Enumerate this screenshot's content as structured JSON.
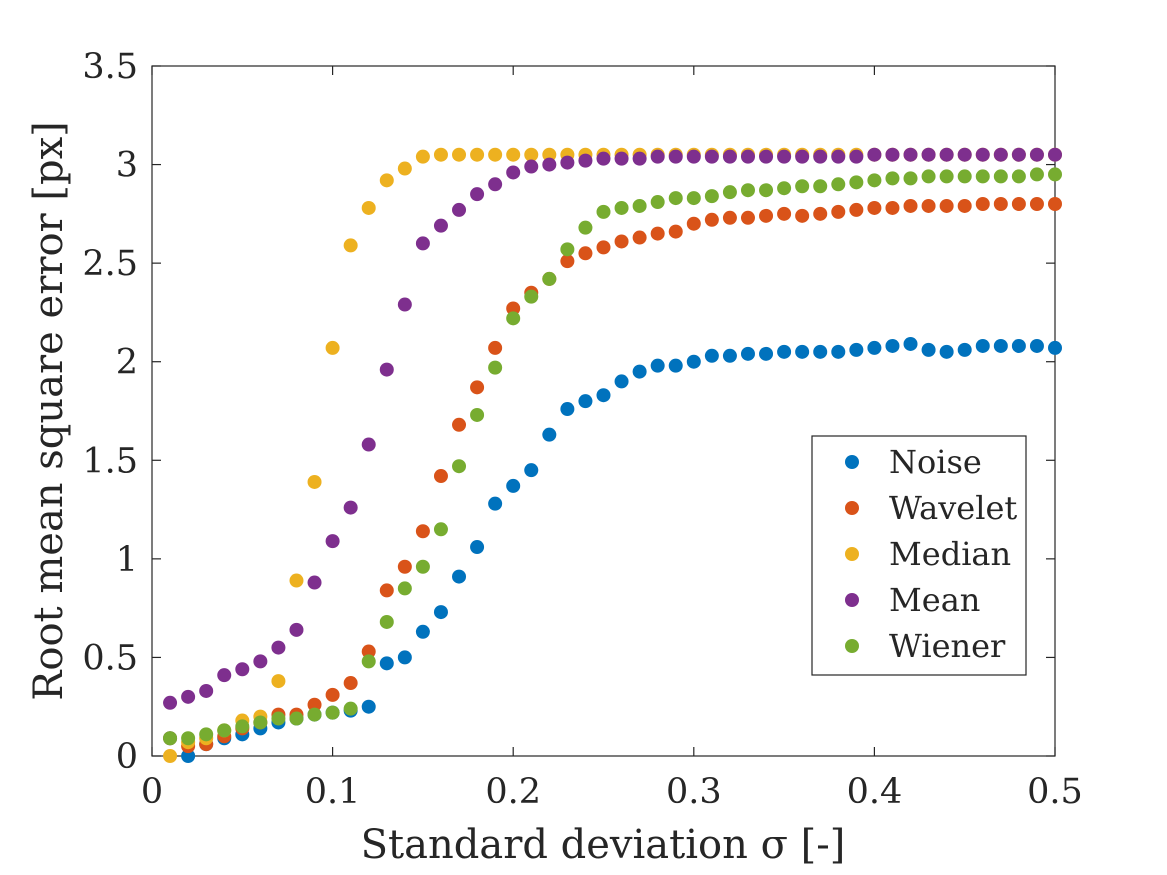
{
  "chart_data": {
    "type": "scatter",
    "title": "",
    "xlabel": "Standard deviation σ [-]",
    "ylabel": "Root mean square error [px]",
    "xlim": [
      0,
      0.5
    ],
    "ylim": [
      0,
      3.5
    ],
    "xticks": [
      "0",
      "0.1",
      "0.2",
      "0.3",
      "0.4",
      "0.5"
    ],
    "yticks": [
      "0",
      "0.5",
      "1",
      "1.5",
      "2",
      "2.5",
      "3",
      "3.5"
    ],
    "grid": false,
    "legend_position": "lower-right",
    "x": [
      0.01,
      0.02,
      0.03,
      0.04,
      0.05,
      0.06,
      0.07,
      0.08,
      0.09,
      0.1,
      0.11,
      0.12,
      0.13,
      0.14,
      0.15,
      0.16,
      0.17,
      0.18,
      0.19,
      0.2,
      0.21,
      0.22,
      0.23,
      0.24,
      0.25,
      0.26,
      0.27,
      0.28,
      0.29,
      0.3,
      0.31,
      0.32,
      0.33,
      0.34,
      0.35,
      0.36,
      0.37,
      0.38,
      0.39,
      0.4,
      0.41,
      0.42,
      0.43,
      0.44,
      0.45,
      0.46,
      0.47,
      0.48,
      0.49,
      0.5
    ],
    "series": [
      {
        "name": "Noise",
        "color": "#0072BD",
        "values": [
          0.09,
          0.0,
          0.06,
          0.09,
          0.11,
          0.14,
          0.17,
          0.19,
          0.21,
          0.22,
          0.23,
          0.25,
          0.47,
          0.5,
          0.63,
          0.73,
          0.91,
          1.06,
          1.28,
          1.37,
          1.45,
          1.63,
          1.76,
          1.8,
          1.83,
          1.9,
          1.95,
          1.98,
          1.98,
          2.0,
          2.03,
          2.03,
          2.04,
          2.04,
          2.05,
          2.05,
          2.05,
          2.05,
          2.06,
          2.07,
          2.08,
          2.09,
          2.06,
          2.05,
          2.06,
          2.08,
          2.08,
          2.08,
          2.08,
          2.07
        ]
      },
      {
        "name": "Wavelet",
        "color": "#D95319",
        "values": [
          0.09,
          0.05,
          0.06,
          0.1,
          0.14,
          0.17,
          0.21,
          0.21,
          0.26,
          0.31,
          0.37,
          0.53,
          0.84,
          0.96,
          1.14,
          1.42,
          1.68,
          1.87,
          2.07,
          2.27,
          2.35,
          2.42,
          2.51,
          2.55,
          2.58,
          2.61,
          2.63,
          2.65,
          2.66,
          2.7,
          2.72,
          2.73,
          2.73,
          2.74,
          2.75,
          2.74,
          2.75,
          2.76,
          2.77,
          2.78,
          2.78,
          2.79,
          2.79,
          2.79,
          2.79,
          2.8,
          2.8,
          2.8,
          2.8,
          2.8
        ]
      },
      {
        "name": "Median",
        "color": "#EDB120",
        "values": [
          0.0,
          0.07,
          0.09,
          0.13,
          0.18,
          0.2,
          0.38,
          0.89,
          1.39,
          2.07,
          2.59,
          2.78,
          2.92,
          2.98,
          3.04,
          3.05,
          3.05,
          3.05,
          3.05,
          3.05,
          3.05,
          3.05,
          3.05,
          3.05,
          3.05,
          3.05,
          3.05,
          3.05,
          3.05,
          3.05,
          3.05,
          3.05,
          3.05,
          3.05,
          3.05,
          3.05,
          3.05,
          3.05,
          3.05,
          3.05,
          3.05,
          3.05,
          3.05,
          3.05,
          3.05,
          3.05,
          3.05,
          3.05,
          3.05,
          3.05
        ]
      },
      {
        "name": "Mean",
        "color": "#7E2F8E",
        "values": [
          0.27,
          0.3,
          0.33,
          0.41,
          0.44,
          0.48,
          0.55,
          0.64,
          0.88,
          1.09,
          1.26,
          1.58,
          1.96,
          2.29,
          2.6,
          2.69,
          2.77,
          2.85,
          2.9,
          2.96,
          2.99,
          3.0,
          3.01,
          3.02,
          3.03,
          3.03,
          3.03,
          3.04,
          3.04,
          3.04,
          3.04,
          3.04,
          3.04,
          3.04,
          3.04,
          3.04,
          3.04,
          3.04,
          3.04,
          3.05,
          3.05,
          3.05,
          3.05,
          3.05,
          3.05,
          3.05,
          3.05,
          3.05,
          3.05,
          3.05
        ]
      },
      {
        "name": "Wiener",
        "color": "#77AC30",
        "values": [
          0.09,
          0.09,
          0.11,
          0.13,
          0.15,
          0.17,
          0.19,
          0.19,
          0.21,
          0.22,
          0.24,
          0.48,
          0.68,
          0.85,
          0.96,
          1.15,
          1.47,
          1.73,
          1.97,
          2.22,
          2.33,
          2.42,
          2.57,
          2.68,
          2.76,
          2.78,
          2.79,
          2.81,
          2.83,
          2.83,
          2.84,
          2.86,
          2.87,
          2.87,
          2.88,
          2.89,
          2.89,
          2.9,
          2.91,
          2.92,
          2.93,
          2.93,
          2.94,
          2.94,
          2.94,
          2.94,
          2.94,
          2.94,
          2.95,
          2.95
        ]
      }
    ]
  }
}
